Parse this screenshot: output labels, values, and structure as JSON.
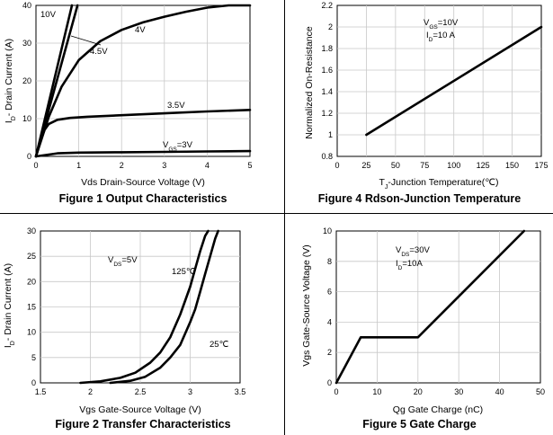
{
  "chart_data": [
    {
      "id": "fig1",
      "type": "line",
      "title": "Figure 1 Output Characteristics",
      "xlabel": "Vds Drain-Source Voltage (V)",
      "ylabel": "I_D- Drain Current (A)",
      "ylabel_main": "I",
      "ylabel_sub": "D",
      "ylabel_rest": "- Drain Current (A)",
      "xlim": [
        0,
        5
      ],
      "ylim": [
        0,
        40
      ],
      "xticks": [
        0,
        1,
        2,
        3,
        4,
        5
      ],
      "yticks": [
        0,
        10,
        20,
        30,
        40
      ],
      "series": [
        {
          "name": "10V",
          "x": [
            0,
            0.84
          ],
          "y": [
            0,
            40
          ]
        },
        {
          "name": "VGS=4.5V",
          "x": [
            0,
            0.97
          ],
          "y": [
            0,
            40
          ]
        },
        {
          "name": "4V",
          "x": [
            0,
            0.3,
            0.6,
            1.0,
            1.5,
            2.0,
            2.5,
            3.0,
            3.5,
            4.0,
            4.5,
            5.0
          ],
          "y": [
            0,
            10.5,
            18.5,
            25.5,
            30.5,
            33.5,
            35.5,
            37.0,
            38.3,
            39.4,
            40.0,
            40.4
          ]
        },
        {
          "name": "3.5V",
          "x": [
            0,
            0.1,
            0.2,
            0.3,
            0.5,
            0.8,
            1.2,
            2.0,
            3.0,
            4.0,
            5.0
          ],
          "y": [
            0,
            4.0,
            7.0,
            8.6,
            9.7,
            10.2,
            10.5,
            10.9,
            11.4,
            11.9,
            12.3
          ]
        },
        {
          "name": "VGS=3V",
          "x": [
            0,
            0.5,
            1,
            2,
            3,
            4,
            5
          ],
          "y": [
            0,
            0.8,
            1.0,
            1.1,
            1.2,
            1.3,
            1.4
          ]
        }
      ],
      "labels": {
        "l10": "10V",
        "l45": "4.5V",
        "l4": "4V",
        "l35": "3.5V",
        "l3_main": "V",
        "l3_sub": "GS",
        "l3_rest": "=3V"
      }
    },
    {
      "id": "fig2",
      "type": "line",
      "title": "Figure 2 Transfer Characteristics",
      "xlabel": "Vgs Gate-Source Voltage (V)",
      "ylabel": "I_D- Drain Current (A)",
      "ylabel_main": "I",
      "ylabel_sub": "D",
      "ylabel_rest": "- Drain Current (A)",
      "xlim": [
        1.5,
        3.5
      ],
      "ylim": [
        0,
        30
      ],
      "xticks": [
        1.5,
        2,
        2.5,
        3,
        3.5
      ],
      "yticks": [
        0,
        5,
        10,
        15,
        20,
        25,
        30
      ],
      "series": [
        {
          "name": "125℃",
          "x": [
            1.9,
            2.1,
            2.3,
            2.45,
            2.6,
            2.7,
            2.8,
            2.9,
            3.0,
            3.05,
            3.1,
            3.15,
            3.18
          ],
          "y": [
            0,
            0.3,
            1.0,
            2.0,
            4.0,
            6.0,
            9.0,
            13.5,
            19.0,
            22.5,
            26.0,
            29.0,
            30.0
          ]
        },
        {
          "name": "25℃",
          "x": [
            2.2,
            2.4,
            2.55,
            2.7,
            2.8,
            2.9,
            3.0,
            3.05,
            3.1,
            3.15,
            3.2,
            3.25,
            3.28
          ],
          "y": [
            0,
            0.4,
            1.2,
            3.0,
            5.0,
            7.5,
            12.0,
            14.5,
            18.0,
            21.5,
            25.0,
            28.5,
            30.0
          ]
        }
      ],
      "labels": {
        "vds_main": "V",
        "vds_sub": "DS",
        "vds_rest": "=5V",
        "l125": "125℃",
        "l25": "25℃"
      }
    },
    {
      "id": "fig4",
      "type": "line",
      "title": "Figure 4 Rdson-Junction Temperature",
      "xlabel": "T_J-Junction Temperature(℃)",
      "xlabel_main": "T",
      "xlabel_sub": "J",
      "xlabel_rest": "-Junction Temperature(℃)",
      "ylabel": "Normalized On-Resistance",
      "xlim": [
        0,
        175
      ],
      "ylim": [
        0.8,
        2.2
      ],
      "xticks": [
        0,
        25,
        50,
        75,
        100,
        125,
        150,
        175
      ],
      "yticks": [
        0.8,
        1,
        1.2,
        1.4,
        1.6,
        1.8,
        2,
        2.2
      ],
      "ytick_labels": [
        "0.8",
        "1",
        "1.2",
        "1.4",
        "1.6",
        "1.8",
        "2",
        "2.2"
      ],
      "series": [
        {
          "name": "Rdson",
          "x": [
            25,
            175
          ],
          "y": [
            1.0,
            2.0
          ]
        }
      ],
      "labels": {
        "vgs_main": "V",
        "vgs_sub": "GS",
        "vgs_rest": "=10V",
        "id_main": "I",
        "id_sub": "D",
        "id_rest": "=10 A"
      }
    },
    {
      "id": "fig5",
      "type": "line",
      "title": "Figure 5 Gate Charge",
      "xlabel": "Qg Gate Charge (nC)",
      "ylabel": "Vgs Gate-Source Voltage (V)",
      "xlim": [
        0,
        50
      ],
      "ylim": [
        0,
        10
      ],
      "xticks": [
        0,
        10,
        20,
        30,
        40,
        50
      ],
      "yticks": [
        0,
        2,
        4,
        6,
        8,
        10
      ],
      "series": [
        {
          "name": "Vgs",
          "x": [
            0,
            6,
            20,
            46
          ],
          "y": [
            0,
            3,
            3,
            10
          ]
        }
      ],
      "labels": {
        "vds_main": "V",
        "vds_sub": "DS",
        "vds_rest": "=30V",
        "id_main": "I",
        "id_sub": "D",
        "id_rest": "=10A"
      }
    }
  ]
}
